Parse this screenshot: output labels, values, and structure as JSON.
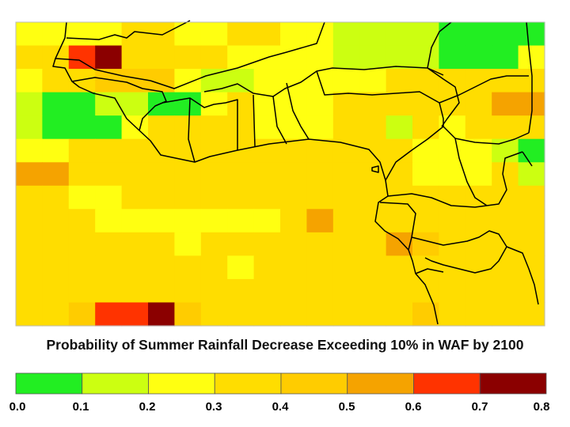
{
  "title": "Probability of Summer Rainfall Decrease Exceeding 10% in WAF by 2100",
  "legend": {
    "ticks": [
      "0.0",
      "0.1",
      "0.2",
      "0.3",
      "0.4",
      "0.5",
      "0.6",
      "0.7",
      "0.8"
    ],
    "range": [
      0.0,
      0.8
    ],
    "colors": [
      "#22ee22",
      "#ccff11",
      "#ffff11",
      "#ffdd00",
      "#ffcc00",
      "#ffb300",
      "#f58a00",
      "#ff3300",
      "#8b0000"
    ],
    "bins": [
      {
        "from": 0.0,
        "to": 0.1,
        "color": "#22ee22"
      },
      {
        "from": 0.1,
        "to": 0.2,
        "color": "#ccff11"
      },
      {
        "from": 0.2,
        "to": 0.3,
        "color": "#ffff11"
      },
      {
        "from": 0.3,
        "to": 0.4,
        "color": "#ffdd00"
      },
      {
        "from": 0.4,
        "to": 0.5,
        "color": "#ffcc00"
      },
      {
        "from": 0.5,
        "to": 0.6,
        "color": "#f5a300"
      },
      {
        "from": 0.6,
        "to": 0.7,
        "color": "#ff3300"
      },
      {
        "from": 0.7,
        "to": 0.8,
        "color": "#8b0000"
      }
    ]
  },
  "grid_values": [
    [
      0.25,
      0.25,
      0.25,
      0.25,
      0.35,
      0.35,
      0.25,
      0.25,
      0.35,
      0.35,
      0.25,
      0.25,
      0.15,
      0.15,
      0.15,
      0.15,
      0.05,
      0.05,
      0.05,
      0.05
    ],
    [
      0.35,
      0.35,
      0.65,
      0.75,
      0.35,
      0.35,
      0.35,
      0.35,
      0.25,
      0.25,
      0.25,
      0.25,
      0.15,
      0.15,
      0.15,
      0.15,
      0.05,
      0.05,
      0.05,
      0.25
    ],
    [
      0.25,
      0.35,
      0.35,
      0.45,
      0.45,
      0.45,
      0.25,
      0.15,
      0.15,
      0.25,
      0.25,
      0.25,
      0.25,
      0.25,
      0.35,
      0.35,
      0.35,
      0.35,
      0.35,
      0.35
    ],
    [
      0.15,
      0.05,
      0.05,
      0.15,
      0.15,
      0.05,
      0.05,
      0.25,
      0.35,
      0.25,
      0.25,
      0.25,
      0.35,
      0.35,
      0.35,
      0.35,
      0.35,
      0.35,
      0.55,
      0.55
    ],
    [
      0.15,
      0.05,
      0.05,
      0.05,
      0.25,
      0.35,
      0.35,
      0.35,
      0.35,
      0.25,
      0.25,
      0.25,
      0.35,
      0.35,
      0.15,
      0.35,
      0.25,
      0.35,
      0.35,
      0.35
    ],
    [
      0.25,
      0.25,
      0.35,
      0.35,
      0.35,
      0.35,
      0.35,
      0.35,
      0.35,
      0.35,
      0.35,
      0.35,
      0.35,
      0.35,
      0.35,
      0.25,
      0.25,
      0.25,
      0.15,
      0.05
    ],
    [
      0.55,
      0.55,
      0.35,
      0.35,
      0.35,
      0.35,
      0.35,
      0.35,
      0.35,
      0.35,
      0.35,
      0.35,
      0.35,
      0.35,
      0.35,
      0.25,
      0.25,
      0.25,
      0.35,
      0.15
    ],
    [
      0.35,
      0.35,
      0.25,
      0.25,
      0.35,
      0.35,
      0.35,
      0.35,
      0.35,
      0.35,
      0.35,
      0.35,
      0.35,
      0.35,
      0.35,
      0.35,
      0.35,
      0.35,
      0.35,
      0.35
    ],
    [
      0.35,
      0.35,
      0.35,
      0.25,
      0.25,
      0.25,
      0.25,
      0.25,
      0.25,
      0.25,
      0.35,
      0.55,
      0.35,
      0.35,
      0.35,
      0.35,
      0.35,
      0.35,
      0.35,
      0.35
    ],
    [
      0.35,
      0.35,
      0.35,
      0.35,
      0.35,
      0.35,
      0.25,
      0.35,
      0.35,
      0.35,
      0.35,
      0.35,
      0.35,
      0.35,
      0.55,
      0.45,
      0.35,
      0.35,
      0.35,
      0.35
    ],
    [
      0.35,
      0.35,
      0.35,
      0.35,
      0.35,
      0.35,
      0.35,
      0.35,
      0.25,
      0.35,
      0.35,
      0.35,
      0.35,
      0.35,
      0.35,
      0.35,
      0.35,
      0.35,
      0.35,
      0.35
    ],
    [
      0.35,
      0.35,
      0.35,
      0.35,
      0.35,
      0.35,
      0.35,
      0.35,
      0.35,
      0.35,
      0.35,
      0.35,
      0.35,
      0.35,
      0.35,
      0.35,
      0.35,
      0.35,
      0.35,
      0.35
    ],
    [
      0.35,
      0.35,
      0.45,
      0.65,
      0.65,
      0.75,
      0.45,
      0.35,
      0.35,
      0.35,
      0.35,
      0.35,
      0.35,
      0.35,
      0.35,
      0.45,
      0.35,
      0.35,
      0.35,
      0.35
    ]
  ]
}
